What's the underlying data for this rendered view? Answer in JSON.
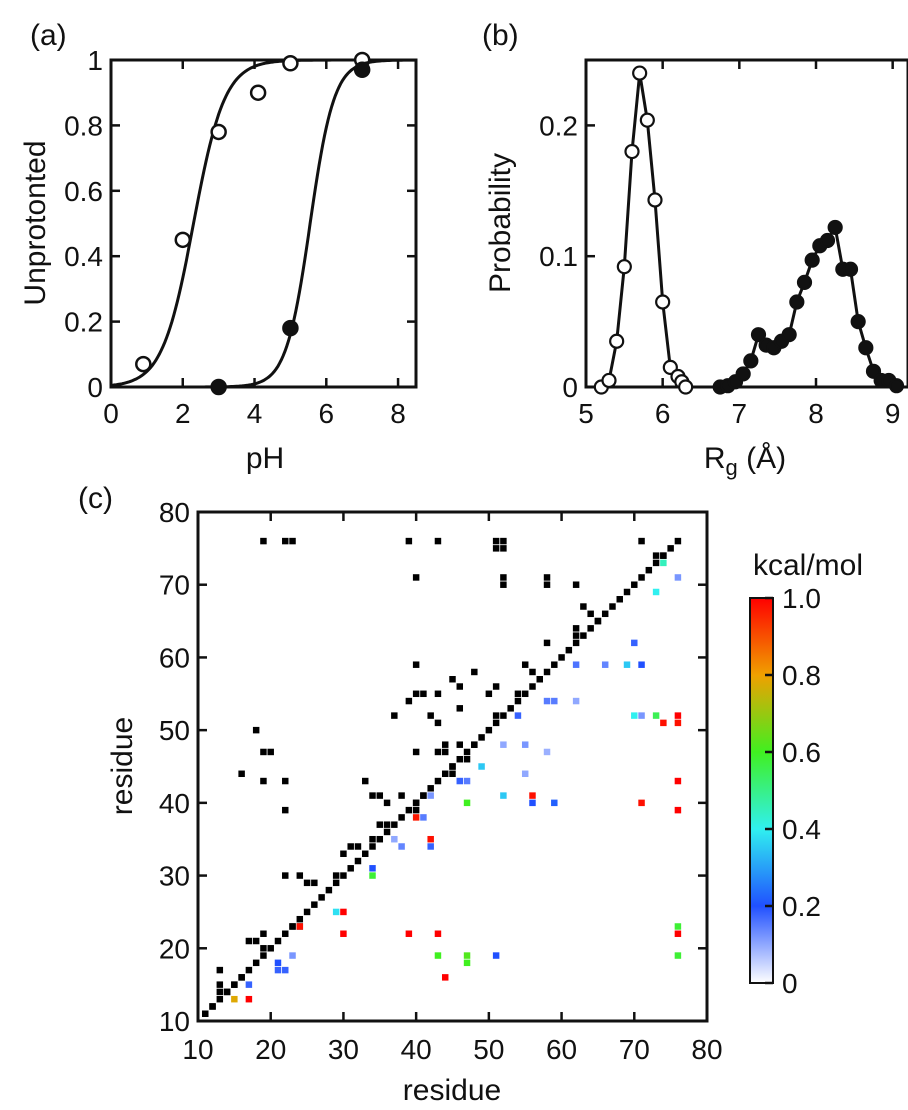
{
  "panels": {
    "a": {
      "label": "(a)"
    },
    "b": {
      "label": "(b)"
    },
    "c": {
      "label": "(c)"
    }
  },
  "chart_data": [
    {
      "id": "a",
      "type": "scatter",
      "xlabel": "pH",
      "ylabel": "Unprotonted",
      "xlim": [
        0,
        8.5
      ],
      "ylim": [
        0,
        1
      ],
      "xticks": [
        0,
        2,
        4,
        6,
        8
      ],
      "yticks": [
        0,
        0.2,
        0.4,
        0.6,
        0.8,
        1
      ],
      "ytick_labels": [
        "0",
        "0.2",
        "0.4",
        "0.6",
        "0.8",
        "1"
      ],
      "series": [
        {
          "marker": "open-circle",
          "x": [
            0.9,
            2.0,
            3.0,
            4.1,
            5.0,
            7.0
          ],
          "y": [
            0.07,
            0.45,
            0.78,
            0.9,
            0.99,
            1.0
          ],
          "fit": {
            "model": "sigmoid",
            "pKa": 2.3,
            "n": 1.0
          }
        },
        {
          "marker": "filled-circle",
          "x": [
            3.0,
            5.0,
            7.0
          ],
          "y": [
            0.0,
            0.18,
            0.97
          ],
          "fit": {
            "model": "sigmoid",
            "pKa": 5.55,
            "n": 1.3
          }
        }
      ],
      "grid": false,
      "legend": "none"
    },
    {
      "id": "b",
      "type": "line",
      "xlabel": "R",
      "xlabel_sub": "g",
      "xlabel_unit": " (Å)",
      "ylabel": "Probability",
      "xlim": [
        5,
        9.2
      ],
      "ylim": [
        0,
        0.25
      ],
      "xticks": [
        5,
        6,
        7,
        8,
        9
      ],
      "yticks": [
        0,
        0.1,
        0.2
      ],
      "ytick_labels": [
        "0",
        "0.1",
        "0.2"
      ],
      "series": [
        {
          "marker": "open-circle",
          "x": [
            5.2,
            5.3,
            5.4,
            5.5,
            5.6,
            5.7,
            5.8,
            5.9,
            6.0,
            6.1,
            6.2,
            6.25,
            6.3
          ],
          "y": [
            0.0,
            0.005,
            0.035,
            0.092,
            0.18,
            0.24,
            0.204,
            0.143,
            0.065,
            0.015,
            0.008,
            0.004,
            0.0
          ]
        },
        {
          "marker": "filled-circle",
          "x": [
            6.75,
            6.85,
            6.95,
            7.05,
            7.15,
            7.25,
            7.35,
            7.45,
            7.55,
            7.65,
            7.75,
            7.85,
            7.95,
            8.05,
            8.15,
            8.25,
            8.35,
            8.45,
            8.55,
            8.65,
            8.75,
            8.85,
            8.95,
            9.05
          ],
          "y": [
            0.0,
            0.001,
            0.004,
            0.01,
            0.02,
            0.04,
            0.032,
            0.03,
            0.035,
            0.04,
            0.065,
            0.08,
            0.097,
            0.108,
            0.112,
            0.122,
            0.09,
            0.09,
            0.05,
            0.03,
            0.012,
            0.005,
            0.005,
            0.001
          ]
        }
      ],
      "grid": false,
      "legend": "none"
    },
    {
      "id": "c",
      "type": "heatmap",
      "xlabel": "residue",
      "ylabel": "residue",
      "xlim": [
        10,
        80
      ],
      "ylim": [
        10,
        80
      ],
      "xticks": [
        10,
        20,
        30,
        40,
        50,
        60,
        70,
        80
      ],
      "yticks": [
        10,
        20,
        30,
        40,
        50,
        60,
        70,
        80
      ],
      "colorbar": {
        "title": "kcal/mol",
        "range": [
          0,
          1
        ],
        "ticks": [
          0,
          0.2,
          0.4,
          0.6,
          0.8,
          1.0
        ],
        "tick_labels": [
          "0",
          "0.2",
          "0.4",
          "0.6",
          "0.8",
          "1.0"
        ],
        "stops": [
          "#ffffff",
          "#2050ff",
          "#30f0f0",
          "#40f020",
          "#f0a000",
          "#ff0000"
        ]
      },
      "diagonal_color": "#000000",
      "black_contacts": [
        [
          19,
          76
        ],
        [
          22,
          76
        ],
        [
          23,
          76
        ],
        [
          39,
          76
        ],
        [
          43,
          76
        ],
        [
          51,
          76
        ],
        [
          52,
          76
        ],
        [
          71,
          76
        ],
        [
          51,
          75
        ],
        [
          52,
          75
        ],
        [
          73,
          74
        ],
        [
          74,
          74
        ],
        [
          40,
          71
        ],
        [
          52,
          71
        ],
        [
          58,
          71
        ],
        [
          58,
          70
        ],
        [
          52,
          70
        ],
        [
          62,
          70
        ],
        [
          63,
          67
        ],
        [
          64,
          66
        ],
        [
          65,
          65
        ],
        [
          62,
          64
        ],
        [
          62,
          63
        ],
        [
          58,
          62
        ],
        [
          40,
          59
        ],
        [
          55,
          59
        ],
        [
          48,
          58
        ],
        [
          56,
          58
        ],
        [
          57,
          57
        ],
        [
          45,
          57
        ],
        [
          46,
          56
        ],
        [
          51,
          56
        ],
        [
          50,
          55
        ],
        [
          54,
          55
        ],
        [
          40,
          55
        ],
        [
          41,
          55
        ],
        [
          43,
          55
        ],
        [
          39,
          54
        ],
        [
          46,
          53
        ],
        [
          42,
          52
        ],
        [
          43,
          51
        ],
        [
          51,
          52
        ],
        [
          37,
          52
        ],
        [
          44,
          48
        ],
        [
          46,
          48
        ],
        [
          48,
          48
        ],
        [
          43,
          47
        ],
        [
          44,
          47
        ],
        [
          40,
          47
        ],
        [
          19,
          47
        ],
        [
          20,
          47
        ],
        [
          18,
          50
        ],
        [
          47,
          46
        ],
        [
          45,
          45
        ],
        [
          16,
          44
        ],
        [
          33,
          43
        ],
        [
          45,
          44
        ],
        [
          19,
          43
        ],
        [
          22,
          43
        ],
        [
          34,
          41
        ],
        [
          35,
          41
        ],
        [
          38,
          41
        ],
        [
          41,
          41
        ],
        [
          36,
          40
        ],
        [
          40,
          40
        ],
        [
          40,
          39
        ],
        [
          22,
          39
        ],
        [
          35,
          37
        ],
        [
          36,
          37
        ],
        [
          31,
          34
        ],
        [
          32,
          34
        ],
        [
          30,
          33
        ],
        [
          34,
          35
        ],
        [
          24,
          30
        ],
        [
          29,
          30
        ],
        [
          22,
          30
        ],
        [
          25,
          29
        ],
        [
          26,
          29
        ],
        [
          19,
          22
        ],
        [
          17,
          21
        ],
        [
          18,
          21
        ],
        [
          19,
          20
        ],
        [
          23,
          23
        ],
        [
          24,
          23
        ],
        [
          13,
          17
        ],
        [
          16,
          16
        ],
        [
          15,
          15
        ],
        [
          13,
          15
        ],
        [
          14,
          14
        ],
        [
          13,
          14
        ],
        [
          11,
          11
        ],
        [
          12,
          12
        ]
      ],
      "colored_contacts": [
        {
          "x": 76,
          "y": 71,
          "v": 0.12
        },
        {
          "x": 74,
          "y": 73,
          "v": 0.45
        },
        {
          "x": 73,
          "y": 69,
          "v": 0.4
        },
        {
          "x": 70,
          "y": 62,
          "v": 0.18
        },
        {
          "x": 62,
          "y": 59,
          "v": 0.16
        },
        {
          "x": 66,
          "y": 59,
          "v": 0.14
        },
        {
          "x": 69,
          "y": 59,
          "v": 0.35
        },
        {
          "x": 71,
          "y": 59,
          "v": 0.2
        },
        {
          "x": 58,
          "y": 54,
          "v": 0.15
        },
        {
          "x": 59,
          "y": 54,
          "v": 0.15
        },
        {
          "x": 62,
          "y": 54,
          "v": 0.1
        },
        {
          "x": 54,
          "y": 52,
          "v": 0.18
        },
        {
          "x": 70,
          "y": 52,
          "v": 0.4
        },
        {
          "x": 71,
          "y": 52,
          "v": 0.12
        },
        {
          "x": 73,
          "y": 52,
          "v": 0.55
        },
        {
          "x": 74,
          "y": 51,
          "v": 0.98
        },
        {
          "x": 76,
          "y": 51,
          "v": 0.98
        },
        {
          "x": 76,
          "y": 52,
          "v": 1.0
        },
        {
          "x": 52,
          "y": 48,
          "v": 0.1
        },
        {
          "x": 55,
          "y": 48,
          "v": 0.12
        },
        {
          "x": 58,
          "y": 47,
          "v": 0.09
        },
        {
          "x": 49,
          "y": 45,
          "v": 0.35
        },
        {
          "x": 46,
          "y": 43,
          "v": 0.18
        },
        {
          "x": 47,
          "y": 43,
          "v": 0.15
        },
        {
          "x": 55,
          "y": 44,
          "v": 0.1
        },
        {
          "x": 52,
          "y": 41,
          "v": 0.35
        },
        {
          "x": 56,
          "y": 41,
          "v": 0.98
        },
        {
          "x": 56,
          "y": 40,
          "v": 0.2
        },
        {
          "x": 59,
          "y": 40,
          "v": 0.22
        },
        {
          "x": 47,
          "y": 40,
          "v": 0.6
        },
        {
          "x": 71,
          "y": 40,
          "v": 0.98
        },
        {
          "x": 76,
          "y": 39,
          "v": 1.0
        },
        {
          "x": 76,
          "y": 43,
          "v": 1.0
        },
        {
          "x": 42,
          "y": 41,
          "v": 0.12
        },
        {
          "x": 41,
          "y": 38,
          "v": 0.15
        },
        {
          "x": 40,
          "y": 38,
          "v": 0.97
        },
        {
          "x": 42,
          "y": 35,
          "v": 0.98
        },
        {
          "x": 42,
          "y": 34,
          "v": 0.18
        },
        {
          "x": 37,
          "y": 35,
          "v": 0.1
        },
        {
          "x": 38,
          "y": 34,
          "v": 0.14
        },
        {
          "x": 34,
          "y": 31,
          "v": 0.2
        },
        {
          "x": 34,
          "y": 30,
          "v": 0.58
        },
        {
          "x": 29,
          "y": 25,
          "v": 0.38
        },
        {
          "x": 30,
          "y": 25,
          "v": 1.0
        },
        {
          "x": 30,
          "y": 22,
          "v": 1.0
        },
        {
          "x": 24,
          "y": 23,
          "v": 0.98
        },
        {
          "x": 39,
          "y": 22,
          "v": 1.0
        },
        {
          "x": 43,
          "y": 22,
          "v": 1.0
        },
        {
          "x": 76,
          "y": 23,
          "v": 0.58
        },
        {
          "x": 76,
          "y": 22,
          "v": 1.0
        },
        {
          "x": 43,
          "y": 19,
          "v": 0.6
        },
        {
          "x": 47,
          "y": 19,
          "v": 0.62
        },
        {
          "x": 47,
          "y": 18,
          "v": 0.6
        },
        {
          "x": 51,
          "y": 19,
          "v": 0.2
        },
        {
          "x": 76,
          "y": 19,
          "v": 0.58
        },
        {
          "x": 44,
          "y": 16,
          "v": 1.0
        },
        {
          "x": 23,
          "y": 19,
          "v": 0.12
        },
        {
          "x": 21,
          "y": 18,
          "v": 0.2
        },
        {
          "x": 21,
          "y": 17,
          "v": 0.18
        },
        {
          "x": 22,
          "y": 17,
          "v": 0.18
        },
        {
          "x": 17,
          "y": 15,
          "v": 0.18
        },
        {
          "x": 17,
          "y": 13,
          "v": 1.0
        },
        {
          "x": 15,
          "y": 13,
          "v": 0.78
        }
      ]
    }
  ]
}
